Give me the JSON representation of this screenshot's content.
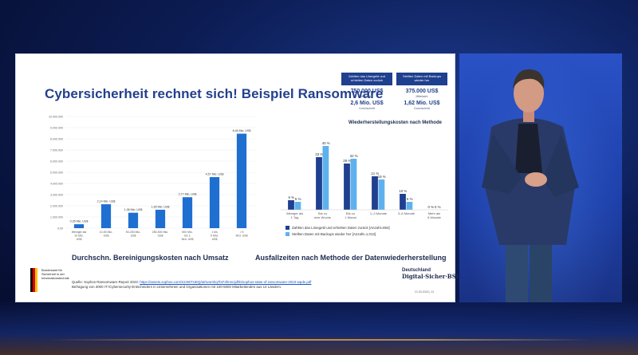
{
  "slide": {
    "title": "Cybersicherheit rechnet sich! Beispiel Ransomware",
    "left_chart_caption": "Durchschn. Bereinigungskosten nach Umsatz",
    "right_chart_caption": "Ausfallzeiten nach Methode der Datenwiederherstellung",
    "recovery_costs_heading": "Wiederherstellungskosten nach Methode",
    "info_cards": [
      {
        "header": "Zahlten das Lösegeld und erhielten Daten zurück",
        "value1": "750.000 US$",
        "sub1": "Mittelwert",
        "value2": "2,6 Mio. US$",
        "sub2": "Durchschnitt"
      },
      {
        "header": "Stellten Daten mit Backups wieder her",
        "value1": "375.000 US$",
        "sub1": "Mittelwert",
        "value2": "1,62 Mio. US$",
        "sub2": "Durchschnitt"
      }
    ],
    "source_line1": "Quelle: Sophos Ransomware-Report 2023:",
    "source_link": "https://assets.sophos.com/X24WTUEQ/at/svomhq7bt74fmmzjdhb/sophos-state-of-ransomware-2023-wpde.pdf",
    "source_line2": "Befragung von 3000 IT-/Cybersecurity-Entscheidern in Unternehmen und Organisationen mit 100-5000 Mitarbeitenden aus 14 Ländern.",
    "bsi_text": "Bundesamt für Sicherheit in der Informationstechnik",
    "brand_line1": "Deutschland",
    "brand_line2": "Digital·Sicher·BSI",
    "date": "21.03.2024 | 12"
  },
  "chart_data": [
    {
      "type": "bar",
      "categories": [
        "Weniger als 10 Mio. US$",
        "10-50 Mio. US$",
        "50-250 Mio. US$",
        "250-500 Mio. US$",
        "500 Mio. bis 1 Mrd. US$",
        "1 bis 5 Mrd. US$",
        "> 5 Mrd. US$"
      ],
      "values": [
        0.35,
        2.14,
        1.38,
        1.65,
        2.77,
        4.57,
        8.46
      ],
      "value_labels": [
        "0,35 Mio. US$",
        "2,14 Mio. US$",
        "1,38 Mio. US$",
        "1,65 Mio. US$",
        "2,77 Mio. US$",
        "4,57 Mio. US$",
        "8,46 Mio. US$"
      ],
      "ylim": [
        0,
        10
      ],
      "y_ticks": [
        0,
        1,
        2,
        3,
        4,
        5,
        6,
        7,
        8,
        9,
        10
      ],
      "y_tick_labels": [
        "0,00",
        "1.000.000",
        "2.000.000",
        "3.000.000",
        "4.000.000",
        "5.000.000",
        "6.000.000",
        "7.000.000",
        "8.000.000",
        "9.000.000",
        "10.000.000"
      ],
      "color": "#1f6fd1"
    },
    {
      "type": "bar",
      "categories": [
        "Weniger als 1 Tag",
        "Bis zu eine Woche",
        "Bis zu 1 Monat",
        "1–3 Monate",
        "3–6 Monate",
        "Mehr als 6 Monate"
      ],
      "series": [
        {
          "name": "Zahlten das Lösegeld und erhielten Daten zurück [Anzahl=694]",
          "values": [
            6,
            33,
            29,
            21,
            10,
            0
          ],
          "color": "#1f3f8f"
        },
        {
          "name": "Stellten Daten mit Backups wieder her [Anzahl=1.013]",
          "values": [
            5,
            40,
            32,
            19,
            5,
            0
          ],
          "color": "#5fb1ee"
        }
      ],
      "ylim": [
        0,
        45
      ]
    }
  ]
}
